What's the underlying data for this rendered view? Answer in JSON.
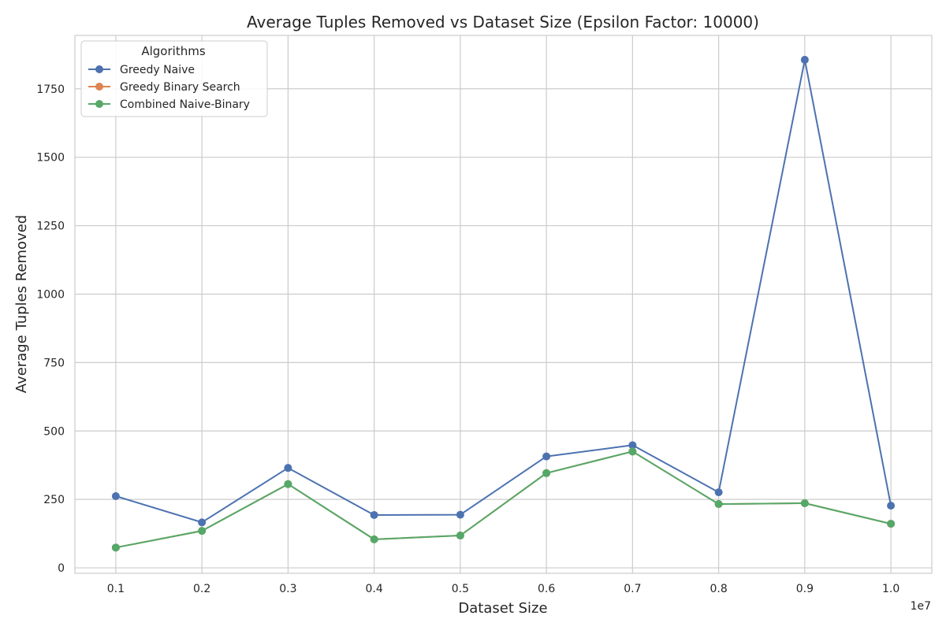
{
  "chart_data": {
    "type": "line",
    "title": "Average Tuples Removed vs Dataset Size (Epsilon Factor: 10000)",
    "xlabel": "Dataset Size",
    "ylabel": "Average Tuples Removed",
    "x_exponent_label": "1e7",
    "x": [
      0.1,
      0.2,
      0.3,
      0.4,
      0.5,
      0.6,
      0.7,
      0.8,
      0.9,
      1.0
    ],
    "x_tick_labels": [
      "0.1",
      "0.2",
      "0.3",
      "0.4",
      "0.5",
      "0.6",
      "0.7",
      "0.8",
      "0.9",
      "1.0"
    ],
    "y_ticks": [
      0,
      250,
      500,
      750,
      1000,
      1250,
      1500,
      1750
    ],
    "xlim": [
      0.0525,
      1.0475
    ],
    "ylim": [
      -20,
      1945
    ],
    "grid": true,
    "legend": {
      "title": "Algorithms",
      "position": "top-left"
    },
    "series": [
      {
        "name": "Greedy Naive",
        "color": "#4c72b0",
        "values": [
          262,
          166,
          365,
          193,
          194,
          407,
          448,
          276,
          1856,
          227
        ]
      },
      {
        "name": "Greedy Binary Search",
        "color": "#dd8452",
        "values": [
          74,
          135,
          306,
          104,
          118,
          346,
          425,
          233,
          236,
          161
        ]
      },
      {
        "name": "Combined Naive-Binary",
        "color": "#55a868",
        "values": [
          74,
          135,
          306,
          104,
          118,
          346,
          425,
          233,
          236,
          161
        ]
      }
    ]
  }
}
